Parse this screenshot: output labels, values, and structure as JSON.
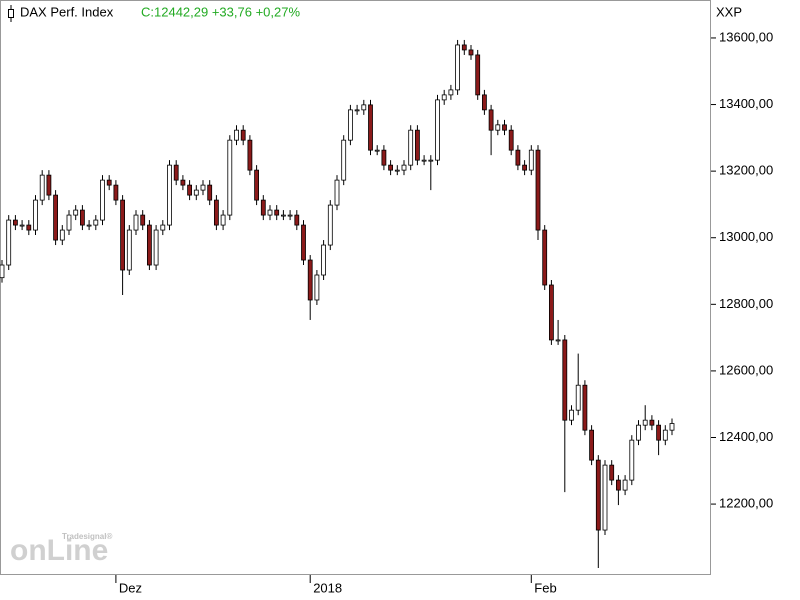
{
  "chart_data": {
    "type": "candlestick",
    "title": "DAX Perf. Index",
    "quote": "C:12442,29 +33,76 +0,27%",
    "axis_label": "XXP",
    "watermark": "onLine",
    "watermark_sub": "Tradesignal®",
    "up_color": "#ffffff",
    "down_color": "#8b1a1a",
    "quote_color": "#22aa22",
    "categories": [
      null,
      null,
      null,
      null,
      null,
      null,
      null,
      null,
      null,
      null,
      null,
      null,
      null,
      null,
      null,
      null,
      null,
      "Dez",
      null,
      null,
      null,
      null,
      null,
      null,
      null,
      null,
      null,
      null,
      null,
      null,
      null,
      null,
      null,
      null,
      null,
      null,
      null,
      null,
      null,
      null,
      null,
      null,
      null,
      null,
      null,
      null,
      "2018",
      null,
      null,
      null,
      null,
      null,
      null,
      null,
      null,
      null,
      null,
      null,
      null,
      null,
      null,
      null,
      null,
      null,
      null,
      null,
      null,
      null,
      null,
      null,
      null,
      null,
      null,
      null,
      null,
      null,
      null,
      null,
      null,
      "Feb",
      null,
      null,
      null,
      null,
      null,
      null,
      null,
      null,
      null,
      null,
      null,
      null,
      null,
      null,
      null,
      null,
      null,
      null,
      null,
      null,
      null
    ],
    "open": [
      12880,
      12918,
      13053,
      13038,
      13038,
      13023,
      13113,
      13188,
      13128,
      12993,
      13023,
      13068,
      13083,
      13038,
      13038,
      13053,
      13173,
      13158,
      13113,
      12903,
      13023,
      13068,
      13038,
      12918,
      13023,
      13038,
      13218,
      13173,
      13158,
      13128,
      13143,
      13158,
      13113,
      13038,
      13068,
      13293,
      13323,
      13293,
      13203,
      13113,
      13068,
      13083,
      13068,
      13068,
      13068,
      13038,
      12933,
      12813,
      12888,
      12978,
      13098,
      13173,
      13293,
      13384,
      13384,
      13399,
      13263,
      13263,
      13218,
      13203,
      13203,
      13218,
      13323,
      13233,
      13233,
      13233,
      13414,
      13429,
      13444,
      13579,
      13564,
      13549,
      13429,
      13384,
      13323,
      13339,
      13323,
      13263,
      13218,
      13203,
      13263,
      13023,
      12858,
      12693,
      12693,
      12452,
      12482,
      12557,
      12422,
      12332,
      12122,
      12317,
      12272,
      12242,
      12272,
      12392,
      12437,
      12452,
      12437,
      12392,
      12422
    ],
    "high": [
      12933,
      13068,
      13068,
      13053,
      13053,
      13128,
      13203,
      13203,
      13143,
      13038,
      13083,
      13098,
      13098,
      13053,
      13068,
      13188,
      13188,
      13173,
      13128,
      13038,
      13083,
      13083,
      13053,
      13038,
      13053,
      13233,
      13233,
      13188,
      13173,
      13158,
      13173,
      13173,
      13128,
      13083,
      13308,
      13338,
      13338,
      13308,
      13218,
      13128,
      13098,
      13098,
      13083,
      13083,
      13083,
      13053,
      12948,
      12903,
      12993,
      13113,
      13188,
      13308,
      13399,
      13399,
      13414,
      13414,
      13278,
      13278,
      13233,
      13218,
      13233,
      13338,
      13338,
      13248,
      13248,
      13429,
      13444,
      13459,
      13594,
      13594,
      13579,
      13564,
      13444,
      13399,
      13354,
      13354,
      13338,
      13278,
      13233,
      13278,
      13278,
      13038,
      12873,
      12753,
      12708,
      12497,
      12652,
      12572,
      12437,
      12347,
      12332,
      12332,
      12287,
      12287,
      12407,
      12452,
      12497,
      12467,
      12452,
      12437,
      12457
    ],
    "low": [
      12865,
      12903,
      13023,
      13023,
      13008,
      13008,
      13098,
      13113,
      12978,
      12978,
      13008,
      13053,
      13023,
      13023,
      13023,
      13038,
      13143,
      13098,
      12828,
      12888,
      13008,
      13023,
      12903,
      12903,
      13008,
      13023,
      13158,
      13143,
      13113,
      13113,
      13128,
      13098,
      13023,
      13023,
      13053,
      13278,
      13278,
      13188,
      13098,
      13053,
      13053,
      13053,
      13053,
      13053,
      13023,
      12918,
      12753,
      12798,
      12873,
      12963,
      13083,
      13158,
      13278,
      13369,
      13369,
      13248,
      13248,
      13203,
      13188,
      13188,
      13188,
      13203,
      13218,
      13218,
      13143,
      13218,
      13399,
      13414,
      13429,
      13549,
      13534,
      13414,
      13369,
      13248,
      13308,
      13308,
      13248,
      13203,
      13188,
      13188,
      12993,
      12843,
      12678,
      12678,
      12236,
      12437,
      12467,
      12407,
      12317,
      12008,
      12107,
      12257,
      12197,
      12227,
      12257,
      12377,
      12422,
      12422,
      12347,
      12377,
      12407
    ],
    "close": [
      12918,
      13053,
      13038,
      13038,
      13023,
      13113,
      13188,
      13128,
      12993,
      13023,
      13068,
      13083,
      13038,
      13038,
      13053,
      13173,
      13158,
      13113,
      12903,
      13023,
      13068,
      13038,
      12918,
      13023,
      13038,
      13218,
      13173,
      13158,
      13128,
      13143,
      13158,
      13113,
      13038,
      13068,
      13293,
      13323,
      13293,
      13203,
      13113,
      13068,
      13083,
      13068,
      13068,
      13068,
      13038,
      12933,
      12813,
      12888,
      12978,
      13098,
      13173,
      13293,
      13384,
      13384,
      13399,
      13263,
      13263,
      13218,
      13203,
      13203,
      13218,
      13323,
      13233,
      13233,
      13233,
      13414,
      13429,
      13444,
      13579,
      13564,
      13549,
      13429,
      13384,
      13323,
      13339,
      13323,
      13263,
      13218,
      13203,
      13263,
      13023,
      12858,
      12693,
      12693,
      12452,
      12482,
      12557,
      12422,
      12332,
      12122,
      12317,
      12272,
      12242,
      12272,
      12392,
      12437,
      12452,
      12437,
      12392,
      12422,
      12442
    ],
    "ylim": [
      11987,
      13714
    ],
    "yticks": [
      {
        "value": 12200,
        "label": "12200,00"
      },
      {
        "value": 12400,
        "label": "12400,00"
      },
      {
        "value": 12600,
        "label": "12600,00"
      },
      {
        "value": 12800,
        "label": "12800,00"
      },
      {
        "value": 13000,
        "label": "13000,00"
      },
      {
        "value": 13200,
        "label": "13200,00"
      },
      {
        "value": 13400,
        "label": "13400,00"
      },
      {
        "value": 13600,
        "label": "13600,00"
      }
    ]
  }
}
